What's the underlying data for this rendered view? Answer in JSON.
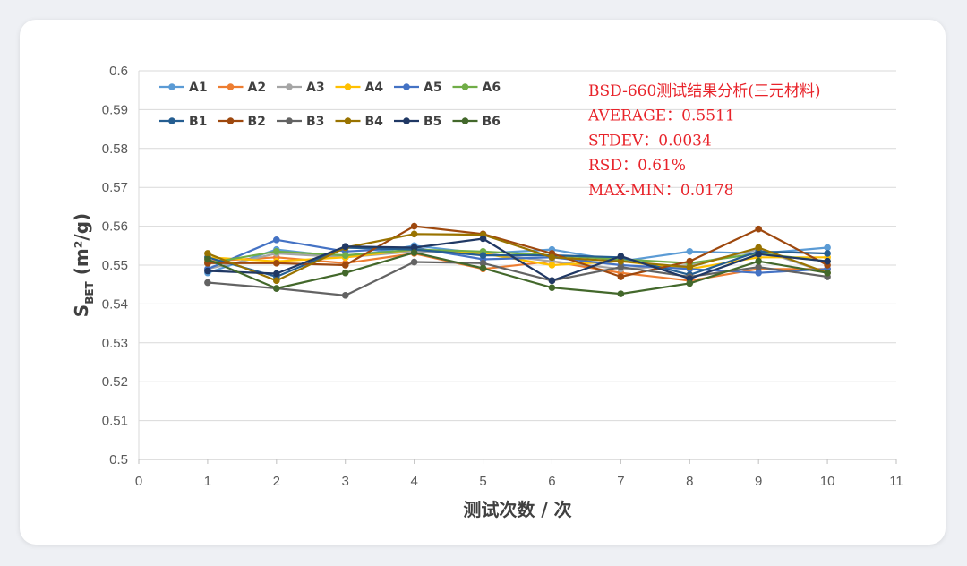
{
  "chart_data": {
    "type": "line",
    "title": "",
    "xlabel": "测试次数 / 次",
    "ylabel": {
      "base": "S",
      "sub": "BET",
      "rest": " (m²/g)"
    },
    "xlim": [
      0,
      11
    ],
    "ylim": [
      0.5,
      0.6
    ],
    "xticks": [
      "0",
      "1",
      "2",
      "3",
      "4",
      "5",
      "6",
      "7",
      "8",
      "9",
      "10",
      "11"
    ],
    "yticks": [
      "0.5",
      "0.51",
      "0.52",
      "0.53",
      "0.54",
      "0.55",
      "0.56",
      "0.57",
      "0.58",
      "0.59",
      "0.6"
    ],
    "grid": "horizontal",
    "legend_position": "top-left",
    "x": [
      1,
      2,
      3,
      4,
      5,
      6,
      7,
      8,
      9,
      10
    ],
    "series": [
      {
        "name": "A1",
        "color": "#5b9bd5",
        "values": [
          0.548,
          0.554,
          0.552,
          0.555,
          0.553,
          0.554,
          0.551,
          0.5535,
          0.553,
          0.5545
        ]
      },
      {
        "name": "A2",
        "color": "#ed7d31",
        "values": [
          0.551,
          0.552,
          0.5505,
          0.553,
          0.549,
          0.551,
          0.548,
          0.546,
          0.549,
          0.549
        ]
      },
      {
        "name": "A3",
        "color": "#a5a5a5",
        "values": [
          0.549,
          0.553,
          0.552,
          0.5535,
          0.553,
          0.551,
          0.549,
          0.55,
          0.554,
          0.548
        ]
      },
      {
        "name": "A4",
        "color": "#ffc000",
        "values": [
          0.552,
          0.551,
          0.552,
          0.554,
          0.553,
          0.55,
          0.551,
          0.549,
          0.552,
          0.552
        ]
      },
      {
        "name": "A5",
        "color": "#4472c4",
        "values": [
          0.549,
          0.5565,
          0.5535,
          0.5545,
          0.5515,
          0.552,
          0.55,
          0.549,
          0.548,
          0.549
        ]
      },
      {
        "name": "A6",
        "color": "#70ad47",
        "values": [
          0.5505,
          0.5535,
          0.5525,
          0.554,
          0.5535,
          0.5525,
          0.5515,
          0.5505,
          0.553,
          0.551
        ]
      },
      {
        "name": "B1",
        "color": "#255e91",
        "values": [
          0.552,
          0.547,
          0.5545,
          0.554,
          0.5525,
          0.5525,
          0.552,
          0.5475,
          0.5535,
          0.553
        ]
      },
      {
        "name": "B2",
        "color": "#9e480e",
        "values": [
          0.5505,
          0.5505,
          0.55,
          0.56,
          0.558,
          0.553,
          0.547,
          0.551,
          0.5593,
          0.55
        ]
      },
      {
        "name": "B3",
        "color": "#636363",
        "values": [
          0.5455,
          0.544,
          0.5422,
          0.5508,
          0.5505,
          0.546,
          0.5495,
          0.547,
          0.5495,
          0.547
        ]
      },
      {
        "name": "B4",
        "color": "#997300",
        "values": [
          0.553,
          0.546,
          0.5545,
          0.558,
          0.5578,
          0.552,
          0.551,
          0.5495,
          0.5545,
          0.548
        ]
      },
      {
        "name": "B5",
        "color": "#203864",
        "values": [
          0.5485,
          0.5478,
          0.5548,
          0.5545,
          0.5568,
          0.546,
          0.5523,
          0.5465,
          0.5528,
          0.551
        ]
      },
      {
        "name": "B6",
        "color": "#43682b",
        "values": [
          0.5515,
          0.544,
          0.548,
          0.5532,
          0.5492,
          0.5442,
          0.5426,
          0.5453,
          0.551,
          0.548
        ]
      }
    ],
    "annotations": [
      "BSD-660测试结果分析(三元材料)",
      "AVERAGE：0.5511",
      "STDEV：0.0034",
      "RSD：0.61%",
      "MAX-MIN：0.0178"
    ]
  }
}
